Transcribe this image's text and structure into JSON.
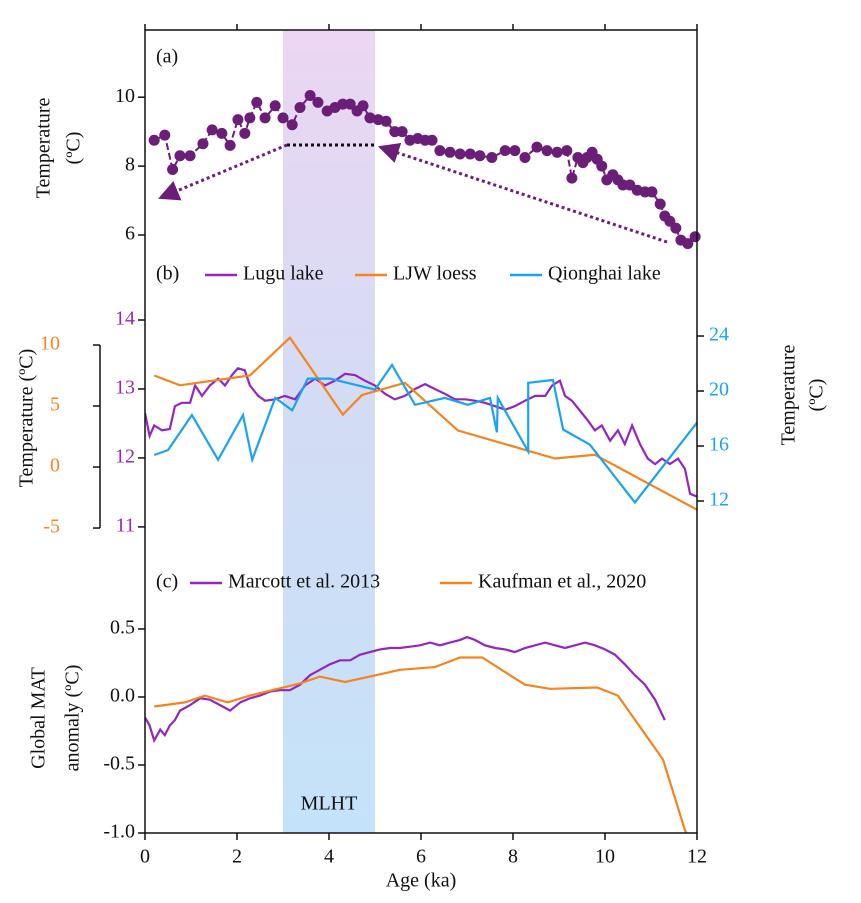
{
  "chart_data": [
    {
      "type": "line",
      "label": "(a)",
      "ylabel": [
        "Temperature",
        "(ºC)"
      ],
      "xlim": [
        0,
        12
      ],
      "ylim": [
        5.1,
        11.95
      ],
      "yticks": [
        6,
        8,
        10
      ],
      "markers": true,
      "series": [
        {
          "color": "#6b1e78",
          "axis": "y",
          "x": [
            0.2,
            0.43,
            0.6,
            0.76,
            0.98,
            1.26,
            1.46,
            1.67,
            1.85,
            2.02,
            2.17,
            2.28,
            2.43,
            2.61,
            2.83,
            3.0,
            3.2,
            3.37,
            3.59,
            3.76,
            3.96,
            4.13,
            4.3,
            4.46,
            4.61,
            4.74,
            4.89,
            5.07,
            5.24,
            5.43,
            5.59,
            5.76,
            5.93,
            6.09,
            6.24,
            6.41,
            6.63,
            6.85,
            7.07,
            7.28,
            7.54,
            7.83,
            8.04,
            8.26,
            8.52,
            8.74,
            8.96,
            9.17,
            9.28,
            9.41,
            9.52,
            9.61,
            9.72,
            9.83,
            9.93,
            10.04,
            10.17,
            10.28,
            10.39,
            10.54,
            10.7,
            10.87,
            11.02,
            11.2,
            11.3,
            11.41,
            11.54,
            11.65,
            11.8,
            11.96
          ],
          "values": [
            8.75,
            8.9,
            7.9,
            8.3,
            8.3,
            8.65,
            9.05,
            8.95,
            8.6,
            9.35,
            8.95,
            9.4,
            9.85,
            9.4,
            9.75,
            9.4,
            9.2,
            9.7,
            10.05,
            9.85,
            9.6,
            9.7,
            9.8,
            9.8,
            9.6,
            9.75,
            9.4,
            9.35,
            9.3,
            9.0,
            9.0,
            8.75,
            8.8,
            8.75,
            8.75,
            8.45,
            8.4,
            8.35,
            8.35,
            8.3,
            8.25,
            8.45,
            8.45,
            8.25,
            8.55,
            8.45,
            8.4,
            8.45,
            7.65,
            8.25,
            8.1,
            8.25,
            8.4,
            8.2,
            8.0,
            7.6,
            7.75,
            7.6,
            7.45,
            7.45,
            7.3,
            7.25,
            7.25,
            6.9,
            6.55,
            6.4,
            6.2,
            5.85,
            5.75,
            5.95
          ]
        }
      ]
    },
    {
      "type": "line",
      "label": "(b)",
      "ylabel": "Temperature (ºC)",
      "y2label": [
        "Temperature",
        "(ºC)"
      ],
      "xlim": [
        0,
        12
      ],
      "ylim": [
        10.52,
        14.29
      ],
      "yticks": [
        11,
        12,
        13,
        14
      ],
      "y2lim": [
        7.71,
        26.62
      ],
      "y2ticks": [
        12,
        16,
        20,
        24
      ],
      "y3lim": [
        -7.62,
        13.69
      ],
      "y3ticks": [
        -5,
        0,
        5,
        10
      ],
      "series": [
        {
          "name": "Lugu lake",
          "color": "#9326c0",
          "axis": "y",
          "x": [
            0,
            0.1,
            0.2,
            0.37,
            0.54,
            0.65,
            0.8,
            0.98,
            1.09,
            1.24,
            1.41,
            1.59,
            1.74,
            1.89,
            2.02,
            2.17,
            2.28,
            2.46,
            2.61,
            2.83,
            3.04,
            3.26,
            3.48,
            3.7,
            3.91,
            4.13,
            4.35,
            4.57,
            4.78,
            5.0,
            5.22,
            5.43,
            5.65,
            5.87,
            6.09,
            6.3,
            6.52,
            6.74,
            6.96,
            7.17,
            7.39,
            7.61,
            7.83,
            8.04,
            8.26,
            8.48,
            8.7,
            8.85,
            9.02,
            9.13,
            9.28,
            9.46,
            9.63,
            9.78,
            9.93,
            10.11,
            10.28,
            10.43,
            10.59,
            10.76,
            10.93,
            11.09,
            11.24,
            11.41,
            11.59,
            11.74,
            11.85,
            12.0
          ],
          "values": [
            12.65,
            12.32,
            12.47,
            12.4,
            12.42,
            12.75,
            12.8,
            12.8,
            13.05,
            12.9,
            13.05,
            13.15,
            13.05,
            13.2,
            13.3,
            13.27,
            13.05,
            12.9,
            12.83,
            12.85,
            12.9,
            12.85,
            13.05,
            13.15,
            13.05,
            13.12,
            13.22,
            13.2,
            13.12,
            13.05,
            12.93,
            12.85,
            12.9,
            13.0,
            13.07,
            13.0,
            12.93,
            12.85,
            12.85,
            12.83,
            12.8,
            12.75,
            12.7,
            12.75,
            12.83,
            12.9,
            12.9,
            13.05,
            13.12,
            12.9,
            12.83,
            12.68,
            12.54,
            12.4,
            12.47,
            12.25,
            12.4,
            12.2,
            12.47,
            12.2,
            11.99,
            11.91,
            11.99,
            11.91,
            11.99,
            11.84,
            11.48,
            11.44
          ]
        },
        {
          "name": "LJW loess",
          "color": "#f5841f",
          "axis": "y3",
          "x": [
            0.2,
            0.76,
            2.28,
            3.15,
            4.3,
            4.72,
            5.65,
            6.8,
            8.91,
            9.78,
            12.0
          ],
          "values": [
            7.5,
            6.7,
            7.5,
            10.6,
            4.3,
            5.9,
            6.9,
            3.0,
            0.7,
            1.0,
            -3.5
          ]
        },
        {
          "name": "Qionghai lake",
          "color": "#1aa3f0",
          "axis": "y2",
          "x": [
            0.2,
            0.5,
            1.02,
            1.59,
            2.13,
            2.33,
            2.83,
            3.2,
            3.54,
            4.02,
            5.0,
            5.37,
            5.87,
            6.52,
            7.02,
            7.5,
            7.65,
            7.67,
            8.33,
            8.33,
            8.87,
            9.09,
            9.67,
            10.65,
            12.0
          ],
          "values": [
            15.35,
            15.7,
            18.25,
            15.0,
            18.25,
            15.0,
            19.5,
            18.6,
            20.9,
            20.9,
            20.1,
            21.9,
            19.0,
            19.5,
            19.0,
            19.5,
            17.0,
            19.5,
            15.6,
            20.6,
            20.8,
            17.2,
            16.1,
            11.9,
            17.7
          ]
        }
      ]
    },
    {
      "type": "line",
      "label": "(c)",
      "ylabel": [
        "Global MAT",
        "anomaly  (ºC)"
      ],
      "xlabel": "Age (ka)",
      "xlim": [
        0,
        12
      ],
      "xticks": [
        0,
        2,
        4,
        6,
        8,
        10,
        12
      ],
      "ylim": [
        -1.0,
        0.713
      ],
      "yticks": [
        {
          "value": -1.0,
          "label": "-1.0"
        },
        -0.5,
        {
          "value": 0.0,
          "label": "0.0"
        },
        0.5
      ],
      "span": [
        3,
        5
      ],
      "span_label": "MLHT",
      "series": [
        {
          "name": "Marcott  et al. 2013",
          "color": "#9326c0",
          "axis": "y",
          "x": [
            0,
            0.1,
            0.2,
            0.33,
            0.43,
            0.54,
            0.65,
            0.76,
            0.98,
            1.2,
            1.41,
            1.63,
            1.85,
            2.07,
            2.28,
            2.5,
            2.72,
            2.93,
            3.15,
            3.37,
            3.59,
            3.8,
            4.02,
            4.24,
            4.46,
            4.67,
            4.89,
            5.11,
            5.33,
            5.54,
            5.76,
            5.98,
            6.2,
            6.41,
            6.63,
            6.85,
            7.0,
            7.17,
            7.39,
            7.61,
            7.83,
            8.04,
            8.26,
            8.48,
            8.7,
            8.91,
            9.13,
            9.35,
            9.57,
            9.78,
            10.0,
            10.22,
            10.43,
            10.65,
            10.87,
            11.09,
            11.3
          ],
          "values": [
            -0.15,
            -0.21,
            -0.32,
            -0.24,
            -0.28,
            -0.21,
            -0.17,
            -0.1,
            -0.06,
            -0.01,
            -0.02,
            -0.06,
            -0.1,
            -0.04,
            -0.01,
            0.01,
            0.04,
            0.05,
            0.05,
            0.09,
            0.16,
            0.2,
            0.24,
            0.27,
            0.27,
            0.31,
            0.33,
            0.35,
            0.36,
            0.36,
            0.37,
            0.38,
            0.4,
            0.38,
            0.4,
            0.42,
            0.44,
            0.42,
            0.38,
            0.36,
            0.35,
            0.33,
            0.36,
            0.38,
            0.4,
            0.38,
            0.36,
            0.38,
            0.4,
            0.38,
            0.35,
            0.31,
            0.24,
            0.16,
            0.09,
            -0.02,
            -0.17
          ]
        },
        {
          "name": "Kaufman et al., 2020",
          "color": "#f5841f",
          "axis": "y",
          "x": [
            0.2,
            0.87,
            1.3,
            1.8,
            2.28,
            3.37,
            3.8,
            4.35,
            4.89,
            5.54,
            6.3,
            6.85,
            7.33,
            8.26,
            8.8,
            9.83,
            10.28,
            11.26,
            11.74,
            11.85
          ],
          "values": [
            -0.07,
            -0.04,
            0.01,
            -0.04,
            0.01,
            0.1,
            0.15,
            0.11,
            0.15,
            0.2,
            0.22,
            0.29,
            0.29,
            0.09,
            0.06,
            0.07,
            0.01,
            -0.46,
            -0.98,
            -1.05
          ]
        }
      ]
    }
  ]
}
